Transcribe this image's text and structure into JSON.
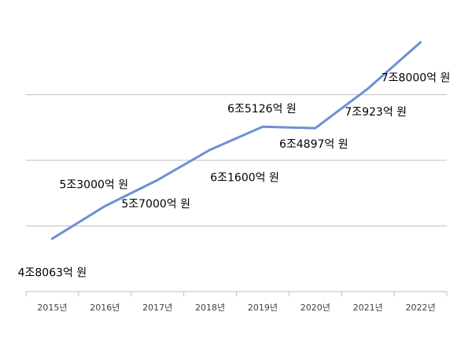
{
  "chart_data": {
    "type": "line",
    "title": "",
    "xlabel": "",
    "ylabel": "",
    "categories": [
      "2015년",
      "2016년",
      "2017년",
      "2018년",
      "2019년",
      "2020년",
      "2021년",
      "2022년"
    ],
    "series": [
      {
        "values": [
          48063,
          53000,
          57000,
          61600,
          65126,
          64897,
          70923,
          78000
        ],
        "labels": [
          "4조8063억 원",
          "5조3000억 원",
          "5조7000억 원",
          "6조1600억 원",
          "6조5126억 원",
          "6조4897억 원",
          "7조923억 원",
          "7조8000억 원"
        ]
      }
    ],
    "ylim": [
      40000,
      80000
    ],
    "gridlines": [
      50000,
      60000,
      70000
    ],
    "grid": true,
    "legend": "none",
    "line_color": "#6e8fd6"
  }
}
